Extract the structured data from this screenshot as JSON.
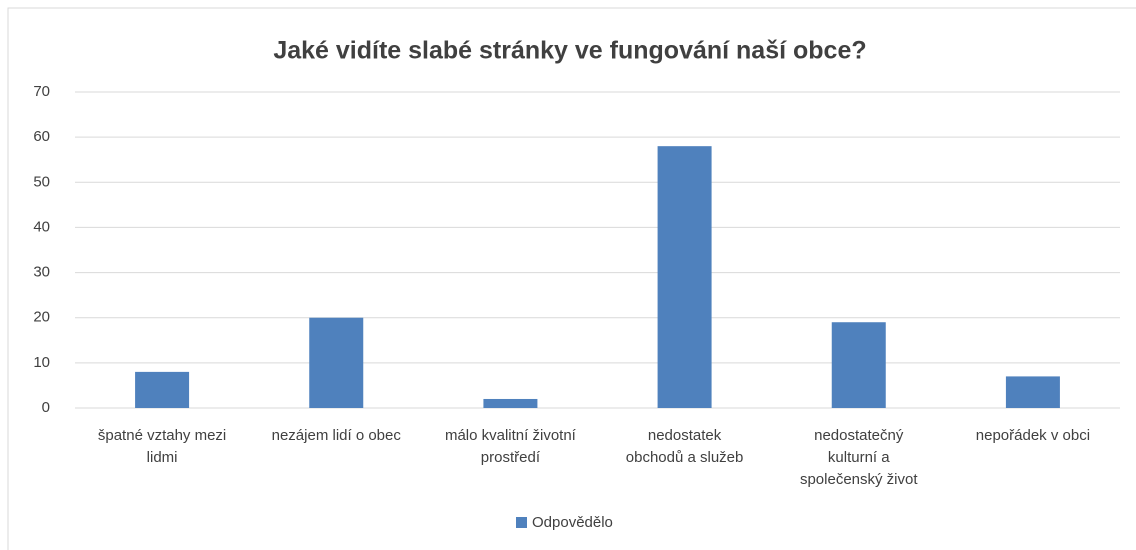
{
  "chart_data": {
    "type": "bar",
    "title": "Jaké vidíte slabé stránky ve fungování naší obce?",
    "categories": [
      "špatné vztahy mezi lidmi",
      "nezájem lidí o obec",
      "málo kvalitní životní prostředí",
      "nedostatek obchodů a služeb",
      "nedostatečný kulturní a společenský život",
      "nepořádek v obci"
    ],
    "series": [
      {
        "name": "Odpovědělo",
        "color": "#4f81bd",
        "values": [
          8,
          20,
          2,
          58,
          19,
          7
        ]
      }
    ],
    "ylim": [
      0,
      70
    ],
    "yticks": [
      0,
      10,
      20,
      30,
      40,
      50,
      60,
      70
    ],
    "grid": true,
    "legend": "bottom"
  }
}
